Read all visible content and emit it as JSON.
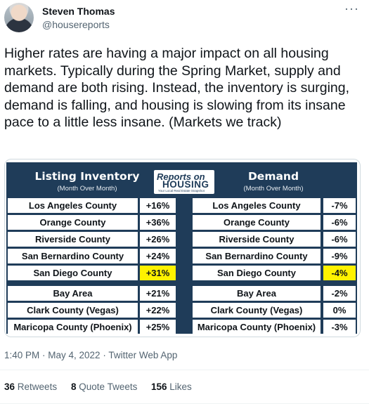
{
  "author": {
    "name": "Steven Thomas",
    "handle": "@housereports"
  },
  "tweet": {
    "text": "Higher rates are having a major impact on all housing markets. Typically during the Spring Market, supply and demand are both rising. Instead, the inventory is surging, demand is falling, and housing is slowing from its insane pace to a little less insane. (Markets we track)",
    "timestamp": "1:40 PM · May 4, 2022 · Twitter Web App"
  },
  "table": {
    "left_title": "Listing Inventory",
    "left_subtitle": "(Month Over Month)",
    "right_title": "Demand",
    "right_subtitle": "(Month Over Month)",
    "logo_line1": "Reports on",
    "logo_line2": "HOUSING",
    "logo_line3": "Your Local Real Estate Snapshot",
    "rows": [
      {
        "county": "Los Angeles County",
        "inventory": "+16%",
        "demand": "-7%"
      },
      {
        "county": "Orange County",
        "inventory": "+36%",
        "demand": "-6%"
      },
      {
        "county": "Riverside County",
        "inventory": "+26%",
        "demand": "-6%"
      },
      {
        "county": "San Bernardino County",
        "inventory": "+24%",
        "demand": "-9%"
      },
      {
        "county": "San Diego County",
        "inventory": "+31%",
        "demand": "-4%"
      },
      {
        "county": "Bay Area",
        "inventory": "+21%",
        "demand": "-2%"
      },
      {
        "county": "Clark County (Vegas)",
        "inventory": "+22%",
        "demand": "0%"
      },
      {
        "county": "Maricopa County (Phoenix)",
        "inventory": "+25%",
        "demand": "-3%"
      }
    ],
    "colors": {
      "navy": "#1f3c59",
      "highlight": "#fff200"
    }
  },
  "stats": {
    "retweets_count": "36",
    "retweets_label": "Retweets",
    "quotes_count": "8",
    "quotes_label": "Quote Tweets",
    "likes_count": "156",
    "likes_label": "Likes"
  }
}
